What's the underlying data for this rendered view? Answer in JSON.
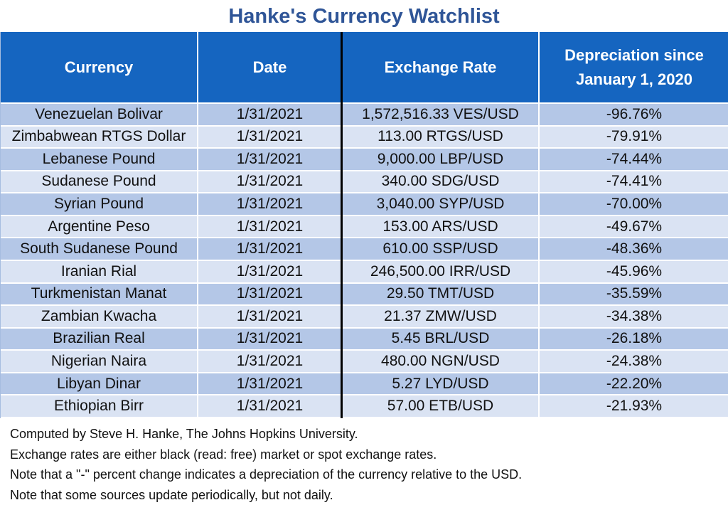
{
  "title": "Hanke's Currency Watchlist",
  "colors": {
    "header_bg": "#1565c0",
    "title": "#2f5597",
    "row_dark": "#b4c7e7",
    "row_light": "#dae3f3"
  },
  "chart_data": {
    "type": "table",
    "title": "Hanke's Currency Watchlist",
    "columns": [
      "Currency",
      "Date",
      "Exchange Rate",
      "Depreciation since January 1, 2020"
    ],
    "rows": [
      [
        "Venezuelan Bolivar",
        "1/31/2021",
        "1,572,516.33 VES/USD",
        "-96.76%"
      ],
      [
        "Zimbabwean RTGS Dollar",
        "1/31/2021",
        "113.00 RTGS/USD",
        "-79.91%"
      ],
      [
        "Lebanese Pound",
        "1/31/2021",
        "9,000.00 LBP/USD",
        "-74.44%"
      ],
      [
        "Sudanese Pound",
        "1/31/2021",
        "340.00 SDG/USD",
        "-74.41%"
      ],
      [
        "Syrian Pound",
        "1/31/2021",
        "3,040.00 SYP/USD",
        "-70.00%"
      ],
      [
        "Argentine Peso",
        "1/31/2021",
        "153.00 ARS/USD",
        "-49.67%"
      ],
      [
        "South Sudanese Pound",
        "1/31/2021",
        "610.00 SSP/USD",
        "-48.36%"
      ],
      [
        "Iranian Rial",
        "1/31/2021",
        "246,500.00 IRR/USD",
        "-45.96%"
      ],
      [
        "Turkmenistan Manat",
        "1/31/2021",
        "29.50 TMT/USD",
        "-35.59%"
      ],
      [
        "Zambian Kwacha",
        "1/31/2021",
        "21.37 ZMW/USD",
        "-34.38%"
      ],
      [
        "Brazilian Real",
        "1/31/2021",
        "5.45 BRL/USD",
        "-26.18%"
      ],
      [
        "Nigerian Naira",
        "1/31/2021",
        "480.00 NGN/USD",
        "-24.38%"
      ],
      [
        "Libyan Dinar",
        "1/31/2021",
        "5.27 LYD/USD",
        "-22.20%"
      ],
      [
        "Ethiopian Birr",
        "1/31/2021",
        "57.00 ETB/USD",
        "-21.93%"
      ]
    ]
  },
  "notes": [
    "Computed by Steve H. Hanke, The Johns Hopkins University.",
    "Exchange rates are either black (read: free) market or spot exchange rates.",
    "Note that a \"-\" percent change indicates a depreciation of the currency relative to the USD.",
    "Note that some sources update periodically, but not daily."
  ]
}
